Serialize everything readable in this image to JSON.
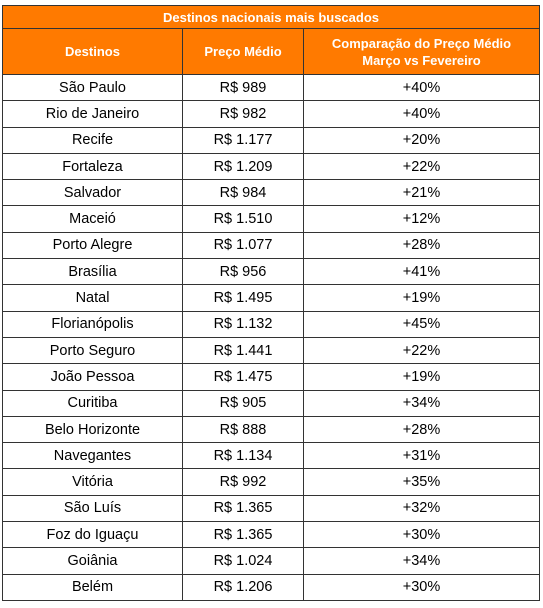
{
  "title": "Destinos nacionais mais buscados",
  "headers": {
    "destino": "Destinos",
    "preco": "Preço Médio",
    "comparacao_line1": "Comparação do Preço Médio",
    "comparacao_line2": "Março vs Fevereiro"
  },
  "rows": [
    {
      "destino": "São Paulo",
      "preco": "R$ 989",
      "comparacao": "+40%"
    },
    {
      "destino": "Rio de Janeiro",
      "preco": "R$ 982",
      "comparacao": "+40%"
    },
    {
      "destino": "Recife",
      "preco": "R$ 1.177",
      "comparacao": "+20%"
    },
    {
      "destino": "Fortaleza",
      "preco": "R$ 1.209",
      "comparacao": "+22%"
    },
    {
      "destino": "Salvador",
      "preco": "R$ 984",
      "comparacao": "+21%"
    },
    {
      "destino": "Maceió",
      "preco": "R$ 1.510",
      "comparacao": "+12%"
    },
    {
      "destino": "Porto Alegre",
      "preco": "R$ 1.077",
      "comparacao": "+28%"
    },
    {
      "destino": "Brasília",
      "preco": "R$ 956",
      "comparacao": "+41%"
    },
    {
      "destino": "Natal",
      "preco": "R$ 1.495",
      "comparacao": "+19%"
    },
    {
      "destino": "Florianópolis",
      "preco": "R$ 1.132",
      "comparacao": "+45%"
    },
    {
      "destino": "Porto Seguro",
      "preco": "R$ 1.441",
      "comparacao": "+22%"
    },
    {
      "destino": "João Pessoa",
      "preco": "R$ 1.475",
      "comparacao": "+19%"
    },
    {
      "destino": "Curitiba",
      "preco": "R$ 905",
      "comparacao": "+34%"
    },
    {
      "destino": "Belo Horizonte",
      "preco": "R$ 888",
      "comparacao": "+28%"
    },
    {
      "destino": "Navegantes",
      "preco": "R$ 1.134",
      "comparacao": "+31%"
    },
    {
      "destino": "Vitória",
      "preco": "R$ 992",
      "comparacao": "+35%"
    },
    {
      "destino": "São Luís",
      "preco": "R$ 1.365",
      "comparacao": "+32%"
    },
    {
      "destino": "Foz do Iguaçu",
      "preco": "R$ 1.365",
      "comparacao": "+30%"
    },
    {
      "destino": "Goiânia",
      "preco": "R$ 1.024",
      "comparacao": "+34%"
    },
    {
      "destino": "Belém",
      "preco": "R$ 1.206",
      "comparacao": "+30%"
    }
  ],
  "colors": {
    "header_bg": "#ff7a00",
    "header_text": "#ffffff",
    "border": "#333333"
  }
}
